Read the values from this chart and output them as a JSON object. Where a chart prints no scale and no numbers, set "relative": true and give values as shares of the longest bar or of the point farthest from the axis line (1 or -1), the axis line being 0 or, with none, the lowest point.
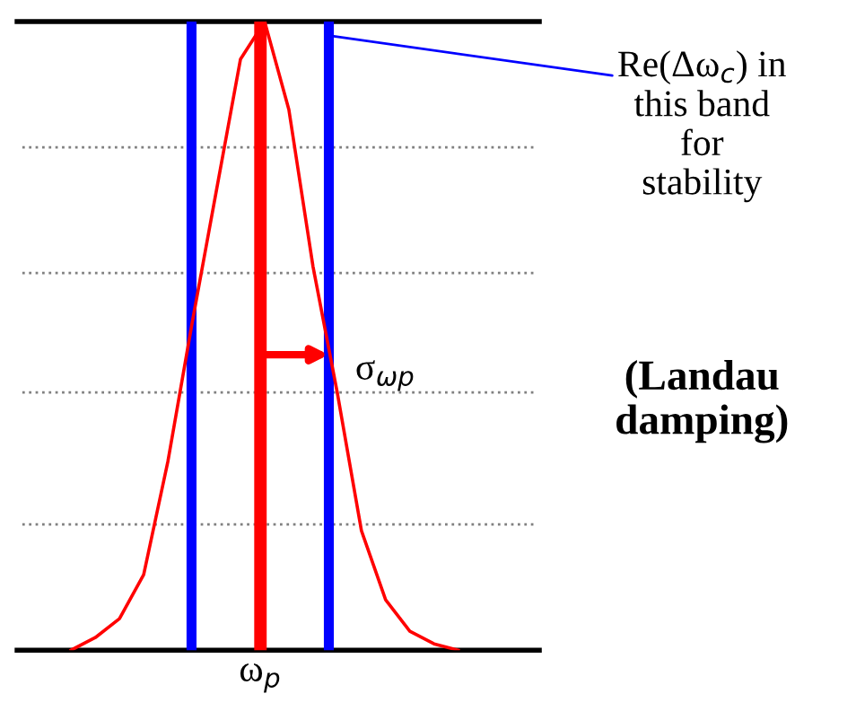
{
  "chart_data": {
    "type": "line",
    "relative": true,
    "categories": [
      null,
      null,
      null,
      null,
      null,
      null,
      null,
      null,
      null,
      null,
      null,
      null,
      null,
      null,
      null,
      null,
      null
    ],
    "series": [
      {
        "color": "#ff0000",
        "values": [
          0.0,
          0.02,
          0.05,
          0.12,
          0.3,
          0.52,
          0.73,
          0.94,
          1.0,
          0.86,
          0.61,
          0.41,
          0.19,
          0.08,
          0.03,
          0.01,
          0.0
        ]
      }
    ],
    "annotations": [
      "Re(Δω$_{c}$) in\nthis band\nfor\nstability",
      "σ$_{ωp}$",
      "(Landau\ndamping)",
      "ω$_{p}$"
    ],
    "legend": false,
    "marker": "none",
    "line_style": "solid"
  }
}
